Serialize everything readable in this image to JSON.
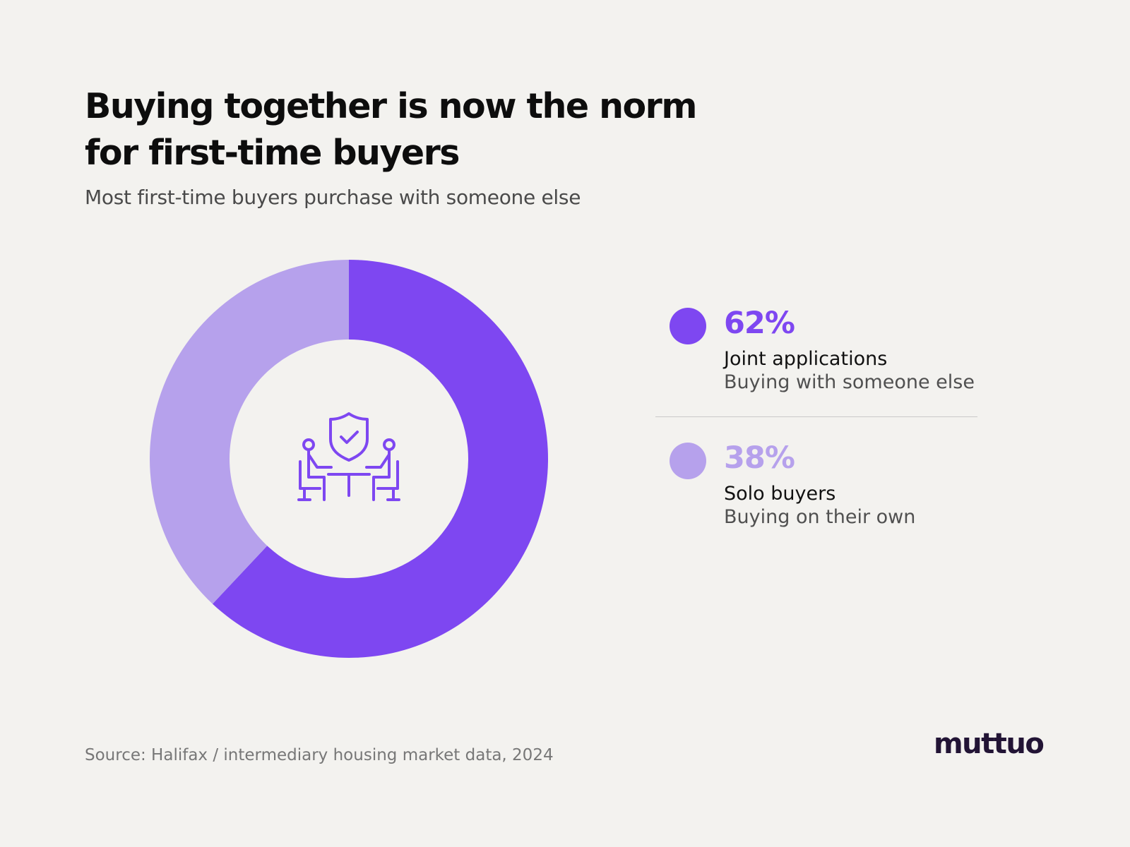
{
  "header": {
    "title": "Buying together is now the norm for first-time buyers",
    "subtitle": "Most first-time buyers purchase with someone else"
  },
  "colors": {
    "primary": "#7e47f1",
    "secondary": "#b6a1ec",
    "background": "#f3f2ef",
    "logo": "#221435"
  },
  "chart_data": {
    "type": "pie",
    "donut": true,
    "title": "Buying together is now the norm for first-time buyers",
    "subtitle": "Most first-time buyers purchase with someone else",
    "series": [
      {
        "name": "Joint applications",
        "value": 62,
        "value_label": "62%",
        "description": "Buying with someone else",
        "color": "#7e47f1"
      },
      {
        "name": "Solo buyers",
        "value": 38,
        "value_label": "38%",
        "description": "Buying on their own",
        "color": "#b6a1ec"
      }
    ],
    "center_icon": "two-people-meeting-shield-icon",
    "legend_position": "right"
  },
  "footer": {
    "source": "Source: Halifax / intermediary housing market data, 2024",
    "logo": "muttuo"
  }
}
